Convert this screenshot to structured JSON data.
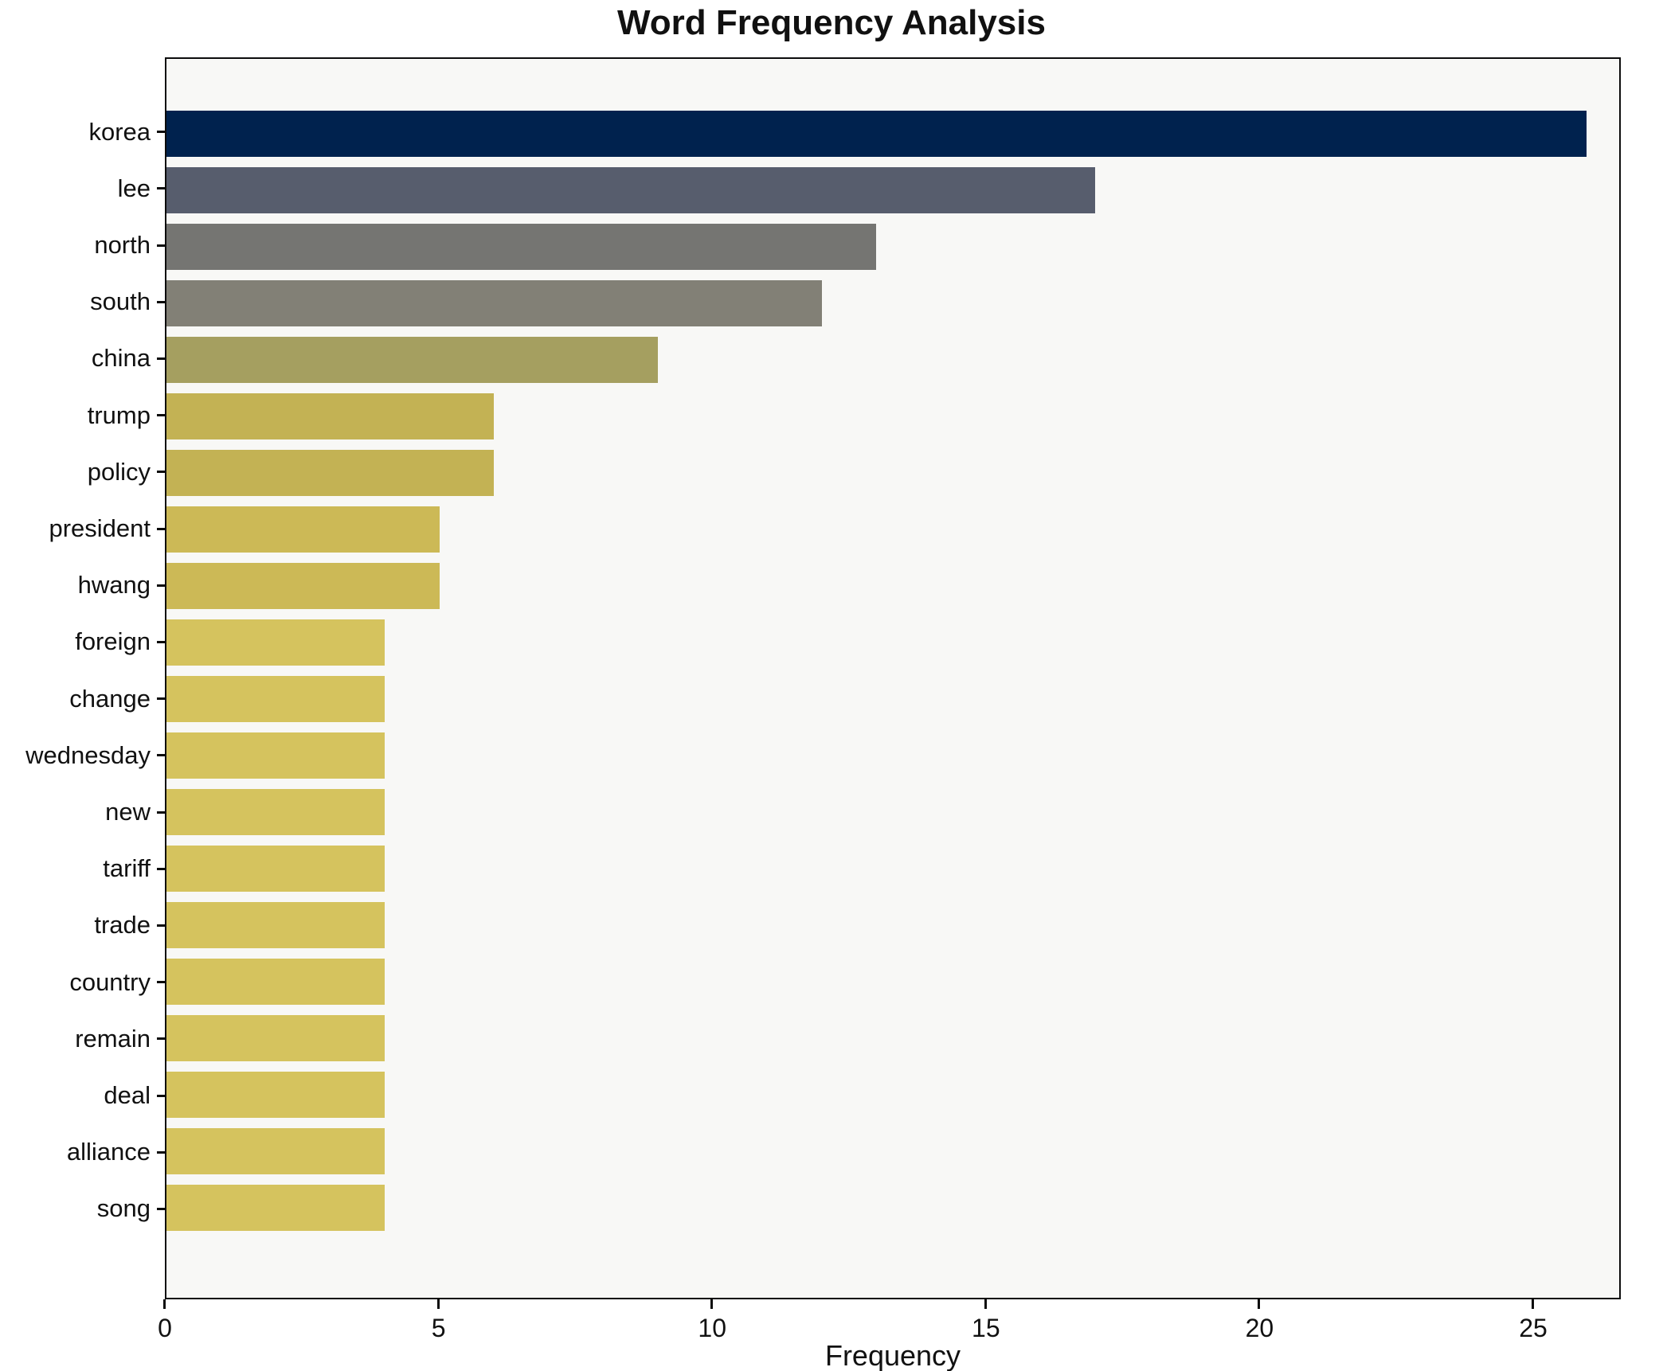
{
  "chart_data": {
    "type": "bar",
    "orientation": "horizontal",
    "title": "Word Frequency Analysis",
    "xlabel": "Frequency",
    "ylabel": "",
    "categories": [
      "korea",
      "lee",
      "north",
      "south",
      "china",
      "trump",
      "policy",
      "president",
      "hwang",
      "foreign",
      "change",
      "wednesday",
      "new",
      "tariff",
      "trade",
      "country",
      "remain",
      "deal",
      "alliance",
      "song"
    ],
    "values": [
      26,
      17,
      13,
      12,
      9,
      6,
      6,
      5,
      5,
      4,
      4,
      4,
      4,
      4,
      4,
      4,
      4,
      4,
      4,
      4
    ],
    "bar_colors": [
      "#00224e",
      "#575d6d",
      "#757572",
      "#828076",
      "#a59f60",
      "#c3b254",
      "#c3b254",
      "#ccb956",
      "#ccb956",
      "#d5c35e",
      "#d5c35e",
      "#d5c35e",
      "#d5c35e",
      "#d5c35e",
      "#d5c35e",
      "#d5c35e",
      "#d5c35e",
      "#d5c35e",
      "#d5c35e",
      "#d5c35e"
    ],
    "xlim": [
      0,
      26.6
    ],
    "xticks": [
      0,
      5,
      10,
      15,
      20,
      25
    ],
    "grid": false,
    "legend": null,
    "plot_background": "#f8f8f6",
    "frame_color": "#0c0c0c"
  }
}
